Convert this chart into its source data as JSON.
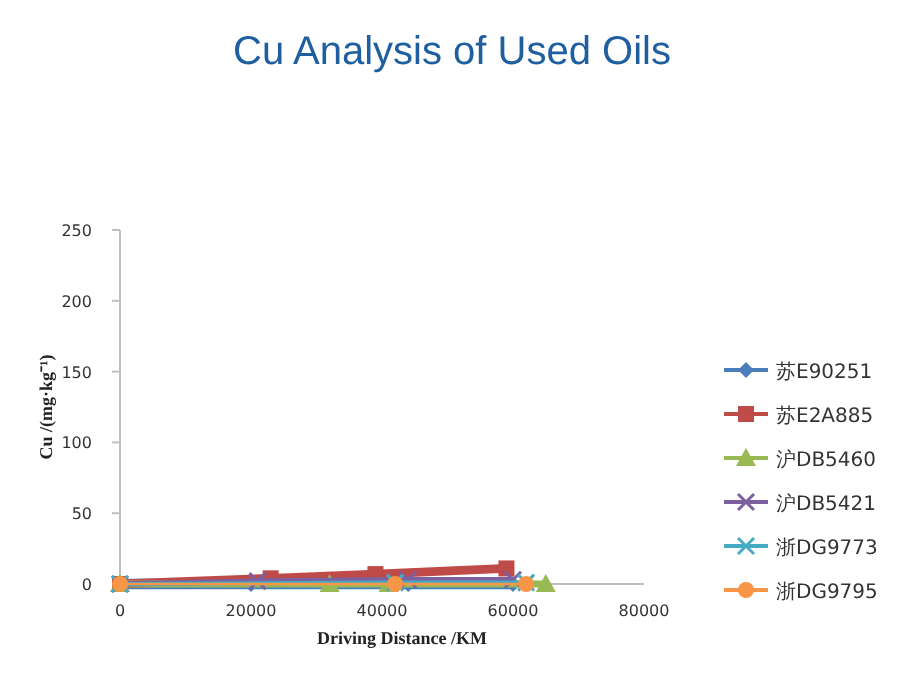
{
  "chart_data": {
    "type": "line",
    "title": "Cu Analysis of Used Oils",
    "xlabel": "Driving Distance  /KM",
    "ylabel": "Cu /(mg·kg⁻¹)",
    "xlim": [
      0,
      80000
    ],
    "xticks": [
      0,
      20000,
      40000,
      60000,
      80000
    ],
    "ylim": [
      0,
      250
    ],
    "yticks": [
      0,
      50,
      100,
      150,
      200,
      250
    ],
    "grid": false,
    "legend": "right",
    "series": [
      {
        "name": "苏E90251",
        "color": "#4a7ebb",
        "marker": "diamond",
        "x": [
          0,
          20000,
          44000,
          60000
        ],
        "values": [
          0,
          0,
          0,
          0
        ]
      },
      {
        "name": "苏E2A885",
        "color": "#be4b48",
        "marker": "square",
        "x": [
          0,
          23000,
          39000,
          59000
        ],
        "values": [
          0,
          4,
          7,
          11
        ]
      },
      {
        "name": "沪DB5460",
        "color": "#98b954",
        "marker": "triangle",
        "x": [
          0,
          32000,
          41000,
          65000
        ],
        "values": [
          0,
          0,
          0,
          0
        ]
      },
      {
        "name": "沪DB5421",
        "color": "#7d60a0",
        "marker": "cross",
        "x": [
          0,
          21000,
          44000,
          60000
        ],
        "values": [
          0,
          2,
          3,
          3
        ]
      },
      {
        "name": "浙DG9773",
        "color": "#46aac5",
        "marker": "cross",
        "x": [
          0,
          42000,
          62000
        ],
        "values": [
          0,
          1,
          1
        ]
      },
      {
        "name": "浙DG9795",
        "color": "#f79646",
        "marker": "circle",
        "x": [
          0,
          42000,
          62000
        ],
        "values": [
          0,
          0,
          0
        ]
      }
    ]
  }
}
